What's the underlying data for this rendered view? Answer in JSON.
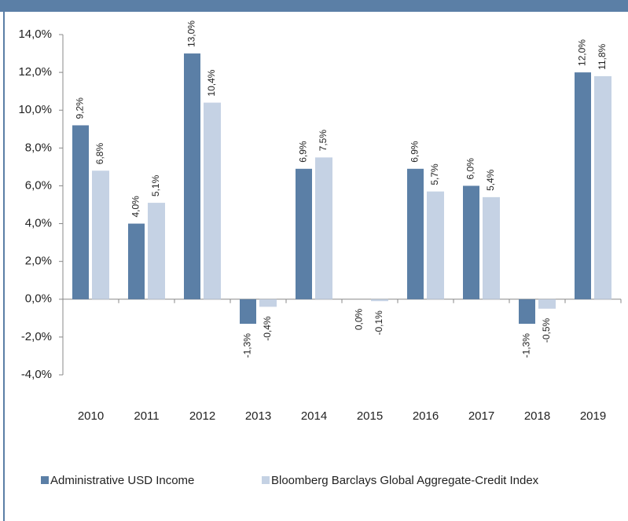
{
  "chart_data": {
    "type": "bar",
    "categories": [
      "2010",
      "2011",
      "2012",
      "2013",
      "2014",
      "2015",
      "2016",
      "2017",
      "2018",
      "2019"
    ],
    "series": [
      {
        "name": "Administrative USD Income",
        "color": "#5b7fa6",
        "values": [
          9.2,
          4.0,
          13.0,
          -1.3,
          6.9,
          0.0,
          6.9,
          6.0,
          -1.3,
          12.0
        ],
        "value_labels": [
          "9,2%",
          "4,0%",
          "13,0%",
          "-1,3%",
          "6,9%",
          "0,0%",
          "6,9%",
          "6,0%",
          "-1,3%",
          "12,0%"
        ]
      },
      {
        "name": "Bloomberg Barclays Global Aggregate-Credit Index",
        "color": "#c5d2e4",
        "values": [
          6.8,
          5.1,
          10.4,
          -0.4,
          7.5,
          -0.1,
          5.7,
          5.4,
          -0.5,
          11.8
        ],
        "value_labels": [
          "6,8%",
          "5,1%",
          "10,4%",
          "-0,4%",
          "7,5%",
          "-0,1%",
          "5,7%",
          "5,4%",
          "-0,5%",
          "11,8%"
        ]
      }
    ],
    "ylim": [
      -4,
      14
    ],
    "yticks": [
      {
        "value": -4,
        "label": "-4,0%"
      },
      {
        "value": -2,
        "label": "-2,0%"
      },
      {
        "value": 0,
        "label": "0,0%"
      },
      {
        "value": 2,
        "label": "2,0%"
      },
      {
        "value": 4,
        "label": "4,0%"
      },
      {
        "value": 6,
        "label": "6,0%"
      },
      {
        "value": 8,
        "label": "8,0%"
      },
      {
        "value": 10,
        "label": "10,0%"
      },
      {
        "value": 12,
        "label": "12,0%"
      },
      {
        "value": 14,
        "label": "14,0%"
      }
    ],
    "legend": "bottom"
  }
}
